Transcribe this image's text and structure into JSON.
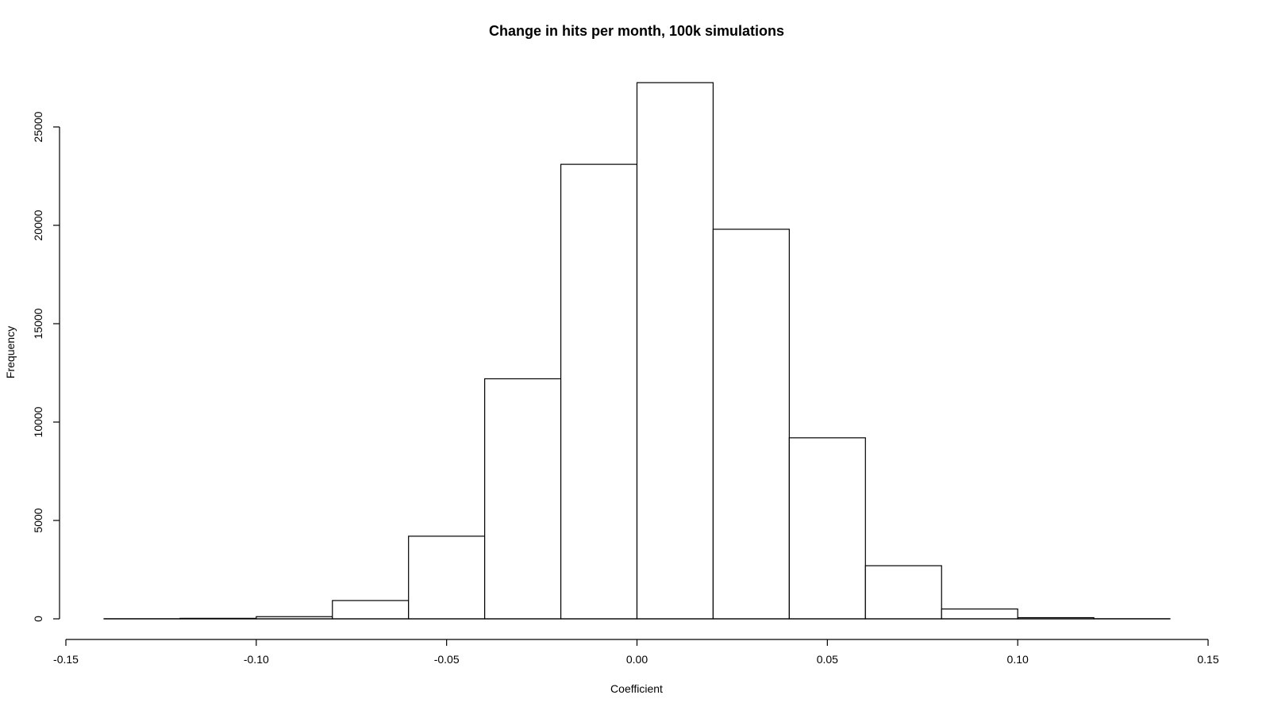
{
  "chart_data": {
    "type": "bar",
    "subtype": "histogram",
    "title": "Change in hits per month, 100k simulations",
    "xlabel": "Coefficient",
    "ylabel": "Frequency",
    "xlim": [
      -0.15,
      0.15
    ],
    "ylim": [
      0,
      27500
    ],
    "x_ticks": [
      -0.15,
      -0.1,
      -0.05,
      0.0,
      0.05,
      0.1,
      0.15
    ],
    "x_tick_labels": [
      "-0.15",
      "-0.10",
      "-0.05",
      "0.00",
      "0.05",
      "0.10",
      "0.15"
    ],
    "y_ticks": [
      0,
      5000,
      10000,
      15000,
      20000,
      25000
    ],
    "y_tick_labels": [
      "0",
      "5000",
      "10000",
      "15000",
      "20000",
      "25000"
    ],
    "bins": [
      {
        "from": -0.14,
        "to": -0.12,
        "value": 5
      },
      {
        "from": -0.12,
        "to": -0.1,
        "value": 25
      },
      {
        "from": -0.1,
        "to": -0.08,
        "value": 110
      },
      {
        "from": -0.08,
        "to": -0.06,
        "value": 930
      },
      {
        "from": -0.06,
        "to": -0.04,
        "value": 4200
      },
      {
        "from": -0.04,
        "to": -0.02,
        "value": 12200
      },
      {
        "from": -0.02,
        "to": 0.0,
        "value": 23100
      },
      {
        "from": 0.0,
        "to": 0.02,
        "value": 27250
      },
      {
        "from": 0.02,
        "to": 0.04,
        "value": 19800
      },
      {
        "from": 0.04,
        "to": 0.06,
        "value": 9200
      },
      {
        "from": 0.06,
        "to": 0.08,
        "value": 2700
      },
      {
        "from": 0.08,
        "to": 0.1,
        "value": 500
      },
      {
        "from": 0.1,
        "to": 0.12,
        "value": 60
      },
      {
        "from": 0.12,
        "to": 0.14,
        "value": 5
      }
    ],
    "grid": false,
    "colors": {
      "bar_fill": "#ffffff",
      "bar_stroke": "#000000",
      "background": "#ffffff"
    }
  }
}
